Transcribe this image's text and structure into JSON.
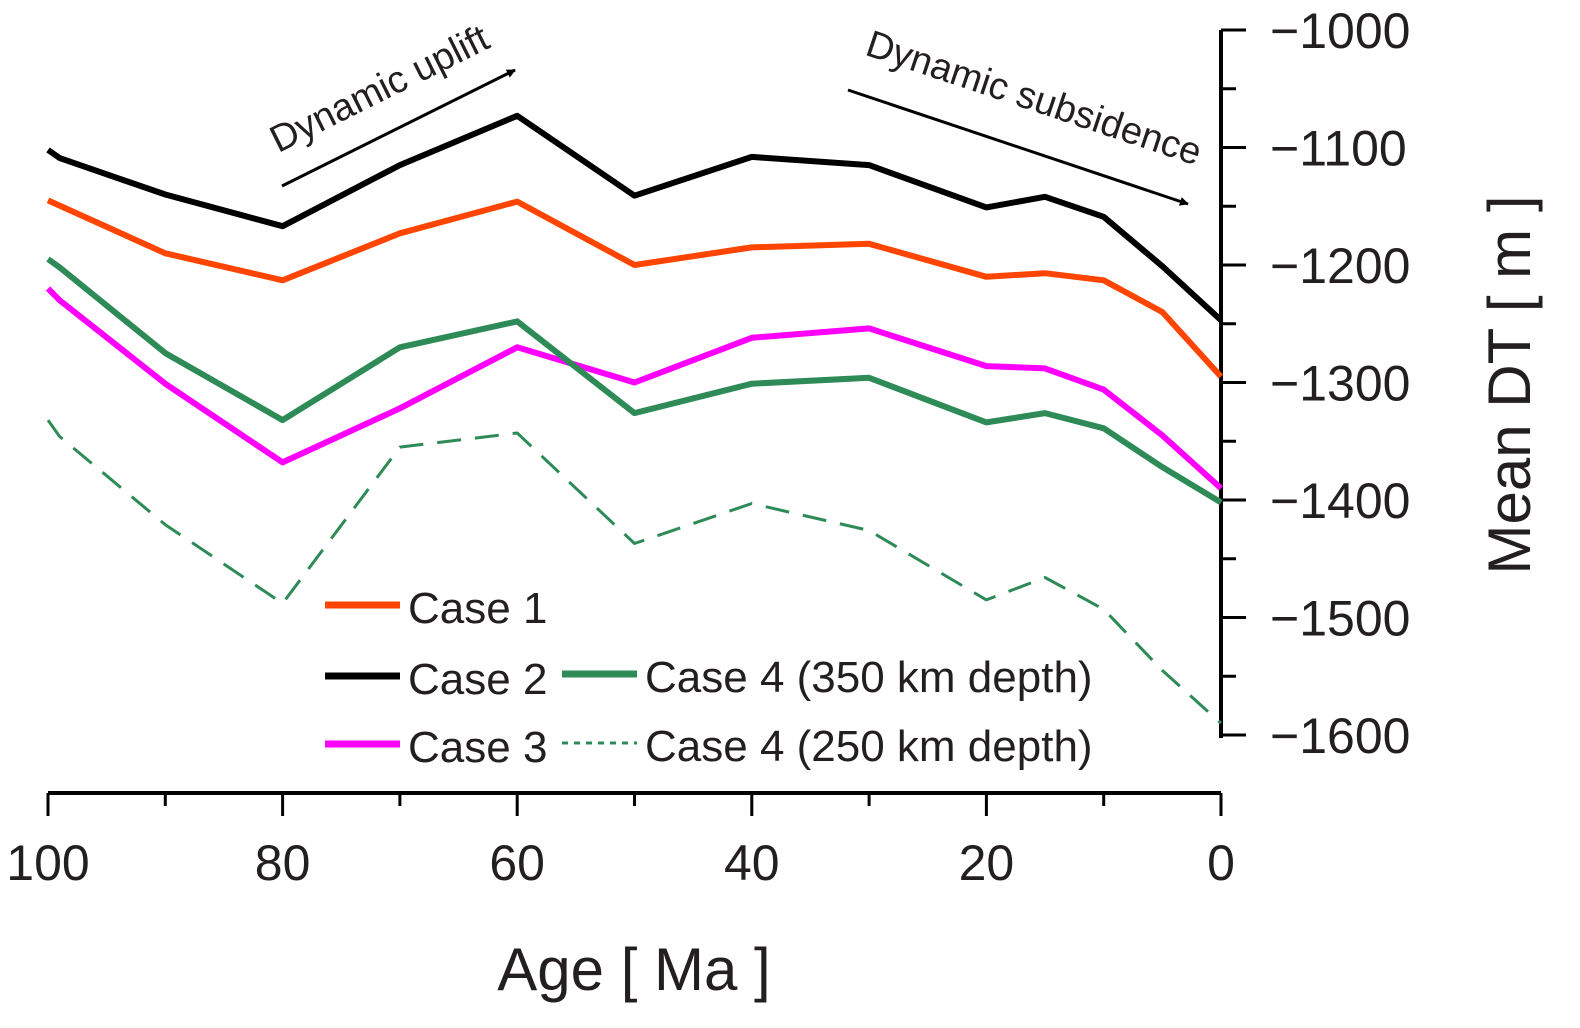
{
  "chart_data": {
    "type": "line",
    "xlabel": "Age [ Ma ]",
    "ylabel": "Mean DT [ m ]",
    "xlim": [
      100,
      0
    ],
    "ylim": [
      -1600,
      -1000
    ],
    "x_ticks": [
      "100",
      "80",
      "60",
      "40",
      "20",
      "0"
    ],
    "y_ticks": [
      "−1000",
      "−1100",
      "−1200",
      "−1300",
      "−1400",
      "−1500",
      "−1600"
    ],
    "annotations": [
      {
        "text": "Dynamic uplift"
      },
      {
        "text": "Dynamic subsidence"
      }
    ],
    "series": [
      {
        "name": "Case 1",
        "color": "#ff4500",
        "dash": "solid",
        "x": [
          100,
          90,
          80,
          70,
          60,
          50,
          40,
          30,
          20,
          15,
          10,
          5,
          0
        ],
        "y": [
          -1145,
          -1190,
          -1213,
          -1173,
          -1146,
          -1200,
          -1185,
          -1182,
          -1210,
          -1207,
          -1213,
          -1240,
          -1295
        ]
      },
      {
        "name": "Case 2",
        "color": "#000000",
        "dash": "solid",
        "x": [
          100,
          99,
          90,
          80,
          70,
          60,
          50,
          40,
          30,
          20,
          15,
          10,
          5,
          0
        ],
        "y": [
          -1102,
          -1109,
          -1140,
          -1167,
          -1115,
          -1073,
          -1141,
          -1108,
          -1115,
          -1151,
          -1142,
          -1159,
          -1201,
          -1247
        ]
      },
      {
        "name": "Case 3",
        "color": "#ff00ff",
        "dash": "solid",
        "x": [
          100,
          99,
          90,
          80,
          70,
          60,
          50,
          40,
          30,
          20,
          15,
          10,
          5,
          0
        ],
        "y": [
          -1220,
          -1230,
          -1301,
          -1368,
          -1322,
          -1270,
          -1300,
          -1262,
          -1254,
          -1286,
          -1288,
          -1306,
          -1345,
          -1390
        ]
      },
      {
        "name": "Case 4 (350 km depth)",
        "color": "#2e8b57",
        "dash": "solid",
        "x": [
          100,
          99,
          90,
          80,
          70,
          60,
          50,
          40,
          30,
          20,
          15,
          10,
          5,
          0
        ],
        "y": [
          -1195,
          -1202,
          -1275,
          -1332,
          -1270,
          -1248,
          -1326,
          -1301,
          -1296,
          -1334,
          -1326,
          -1339,
          -1372,
          -1402
        ]
      },
      {
        "name": "Case 4 (250 km depth)",
        "color": "#2e8b57",
        "dash": "dashed",
        "x": [
          100,
          99,
          90,
          80,
          70,
          60,
          50,
          40,
          30,
          20,
          15,
          10,
          5,
          0
        ],
        "y": [
          -1332,
          -1346,
          -1421,
          -1488,
          -1355,
          -1343,
          -1437,
          -1403,
          -1426,
          -1485,
          -1466,
          -1493,
          -1545,
          -1590
        ]
      }
    ]
  }
}
